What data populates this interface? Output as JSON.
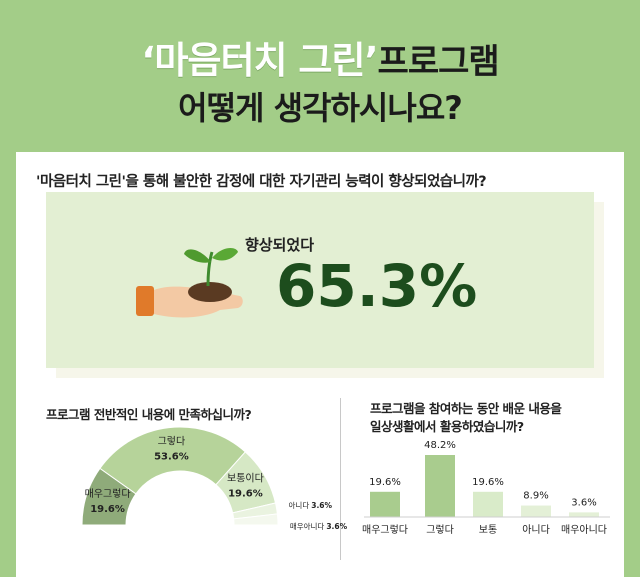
{
  "title": {
    "highlight": "‘마음터치 그린’",
    "rest": "프로그램",
    "line2": "어떻게 생각하시나요?"
  },
  "q1": {
    "question": "'마음터치 그린'을 통해 불안한 감정에 대한 자기관리 능력이 향상되었습니까?",
    "label": "향상되었다",
    "value": "65.3%"
  },
  "q2": {
    "question": "프로그램 전반적인 내용에 만족하십니까?"
  },
  "q3": {
    "question_line1": "프로그램을 참여하는 동안 배운 내용을",
    "question_line2": "일상생활에서 활용하였습니까?"
  },
  "colors": {
    "bg": "#a3cd88",
    "dark_green": "#1d4d1d",
    "light_green": "#e3efd3"
  },
  "chart_data": [
    {
      "type": "pie",
      "title": "프로그램 전반적인 내용에 만족하십니까?",
      "categories": [
        "매우그렇다",
        "그렇다",
        "보통이다",
        "아니다",
        "매우아니다"
      ],
      "values": [
        19.6,
        53.6,
        19.6,
        3.6,
        3.6
      ],
      "labels": [
        "19.6%",
        "53.6%",
        "19.6%",
        "3.6%",
        "3.6%"
      ],
      "colors": [
        "#8fab7a",
        "#b6d39a",
        "#d6e8c5",
        "#eaf3e0",
        "#f4f8ee"
      ]
    },
    {
      "type": "bar",
      "title": "프로그램을 참여하는 동안 배운 내용을 일상생활에서 활용하였습니까?",
      "categories": [
        "매우그렇다",
        "그렇다",
        "보통",
        "아니다",
        "매우아니다"
      ],
      "values": [
        19.6,
        48.2,
        19.6,
        8.9,
        3.6
      ],
      "labels": [
        "19.6%",
        "48.2%",
        "19.6%",
        "8.9%",
        "3.6%"
      ],
      "colors": [
        "#a9cc8e",
        "#a9cc8e",
        "#d9ebc9",
        "#e4f0d7",
        "#e4f0d7"
      ]
    }
  ]
}
